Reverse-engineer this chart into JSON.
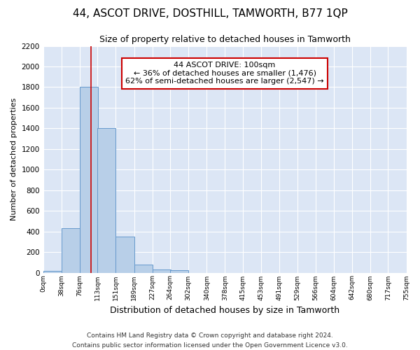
{
  "title": "44, ASCOT DRIVE, DOSTHILL, TAMWORTH, B77 1QP",
  "subtitle": "Size of property relative to detached houses in Tamworth",
  "xlabel": "Distribution of detached houses by size in Tamworth",
  "ylabel": "Number of detached properties",
  "bar_color": "#b8cfe8",
  "bar_edge_color": "#6699cc",
  "background_color": "#dce6f5",
  "grid_color": "#ffffff",
  "annotation_box_color": "#cc0000",
  "annotation_line_color": "#cc0000",
  "property_line_x": 100,
  "annotation_text": "44 ASCOT DRIVE: 100sqm\n← 36% of detached houses are smaller (1,476)\n62% of semi-detached houses are larger (2,547) →",
  "footer_text": "Contains HM Land Registry data © Crown copyright and database right 2024.\nContains public sector information licensed under the Open Government Licence v3.0.",
  "bin_edges": [
    0,
    38,
    76,
    113,
    151,
    189,
    227,
    264,
    302,
    340,
    378,
    415,
    453,
    491,
    529,
    566,
    604,
    642,
    680,
    717,
    755
  ],
  "bin_counts": [
    15,
    430,
    1800,
    1400,
    350,
    80,
    30,
    25,
    0,
    0,
    0,
    0,
    0,
    0,
    0,
    0,
    0,
    0,
    0,
    0
  ],
  "ylim": [
    0,
    2200
  ],
  "yticks": [
    0,
    200,
    400,
    600,
    800,
    1000,
    1200,
    1400,
    1600,
    1800,
    2000,
    2200
  ],
  "tick_labels": [
    "0sqm",
    "38sqm",
    "76sqm",
    "113sqm",
    "151sqm",
    "189sqm",
    "227sqm",
    "264sqm",
    "302sqm",
    "340sqm",
    "378sqm",
    "415sqm",
    "453sqm",
    "491sqm",
    "529sqm",
    "566sqm",
    "604sqm",
    "642sqm",
    "680sqm",
    "717sqm",
    "755sqm"
  ],
  "title_fontsize": 11,
  "subtitle_fontsize": 9,
  "xlabel_fontsize": 9,
  "ylabel_fontsize": 8,
  "footer_fontsize": 6.5
}
